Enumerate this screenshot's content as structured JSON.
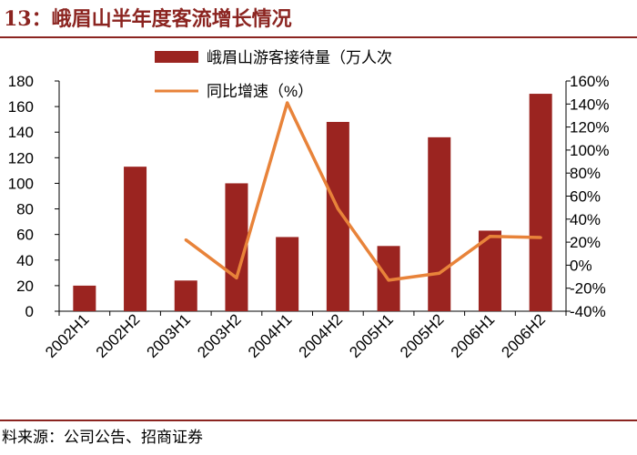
{
  "header": {
    "title": "13：峨眉山半年度客流增长情况"
  },
  "footer": {
    "source": "料来源：公司公告、招商证券"
  },
  "colors": {
    "bar": "#9B2420",
    "line": "#E8833A",
    "rule": "#8B2420"
  },
  "chart_data": {
    "type": "bar",
    "title": "",
    "categories": [
      "2002H1",
      "2002H2",
      "2003H1",
      "2003H2",
      "2004H1",
      "2004H2",
      "2005H1",
      "2005H2",
      "2006H1",
      "2006H2"
    ],
    "series": [
      {
        "name": "峨眉山游客接待量（万人次",
        "kind": "bar",
        "axis": "left",
        "values": [
          20,
          113,
          24,
          100,
          58,
          148,
          51,
          136,
          63,
          170
        ]
      },
      {
        "name": "同比增速（%）",
        "kind": "line",
        "axis": "right",
        "values": [
          null,
          null,
          22,
          -11,
          141,
          49,
          -13,
          -7,
          25,
          24
        ]
      }
    ],
    "left_axis": {
      "min": 0,
      "max": 180,
      "step": 20,
      "tick_labels": [
        "0",
        "20",
        "40",
        "60",
        "80",
        "100",
        "120",
        "140",
        "160",
        "180"
      ]
    },
    "right_axis": {
      "min": -40,
      "max": 160,
      "step": 20,
      "tick_labels": [
        "-40%",
        "-20%",
        "0%",
        "20%",
        "40%",
        "60%",
        "80%",
        "100%",
        "120%",
        "140%",
        "160%"
      ]
    },
    "legend": {
      "placement": "top-center"
    },
    "grid": false
  }
}
